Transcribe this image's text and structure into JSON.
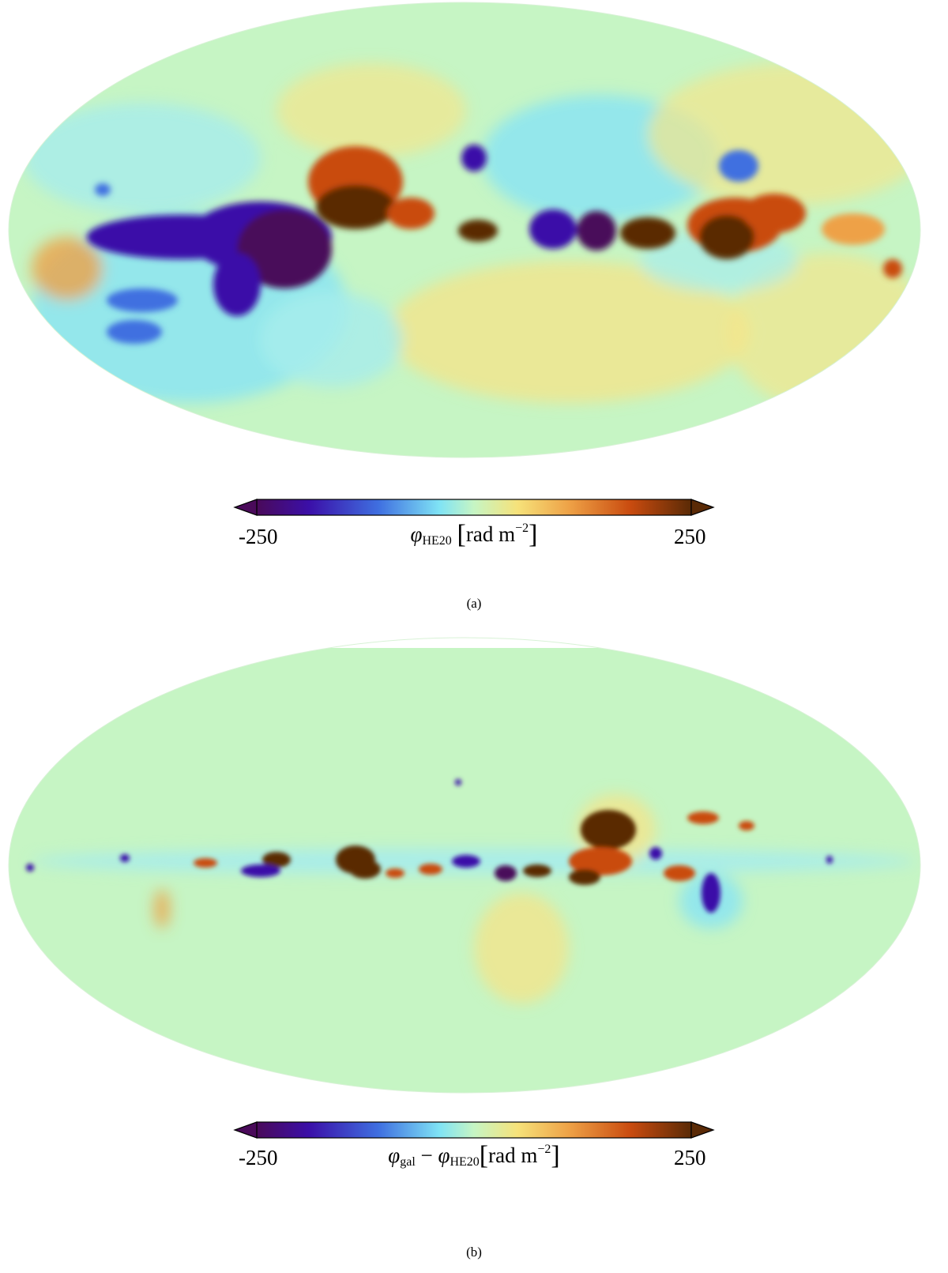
{
  "panels": [
    {
      "id": "a",
      "colorbar": {
        "min_label": "-250",
        "max_label": "250",
        "title_symbol": "φ",
        "title_subscript": "HE20",
        "title_unit": "rad m",
        "title_exponent": "−2"
      },
      "caption": "(a)",
      "map": {
        "projection": "Mollweide all-sky",
        "value_range": [
          -250,
          250
        ],
        "background": "#c6f5c4"
      }
    },
    {
      "id": "b",
      "colorbar": {
        "min_label": "-250",
        "max_label": "250",
        "title_symbol_1": "φ",
        "title_subscript_1": "gal",
        "title_minus": "−",
        "title_symbol_2": "φ",
        "title_subscript_2": "HE20",
        "title_unit": "rad m",
        "title_exponent": "−2"
      },
      "caption": "(b)",
      "map": {
        "projection": "Mollweide all-sky",
        "value_range": [
          -250,
          250
        ],
        "background": "#c6f5c4"
      }
    }
  ],
  "colormap": [
    "#4a0a5a",
    "#3b0fa8",
    "#3f6fe0",
    "#7fe3f5",
    "#c6f5c4",
    "#f6e27a",
    "#eea146",
    "#c94b0f",
    "#5a2a06"
  ]
}
